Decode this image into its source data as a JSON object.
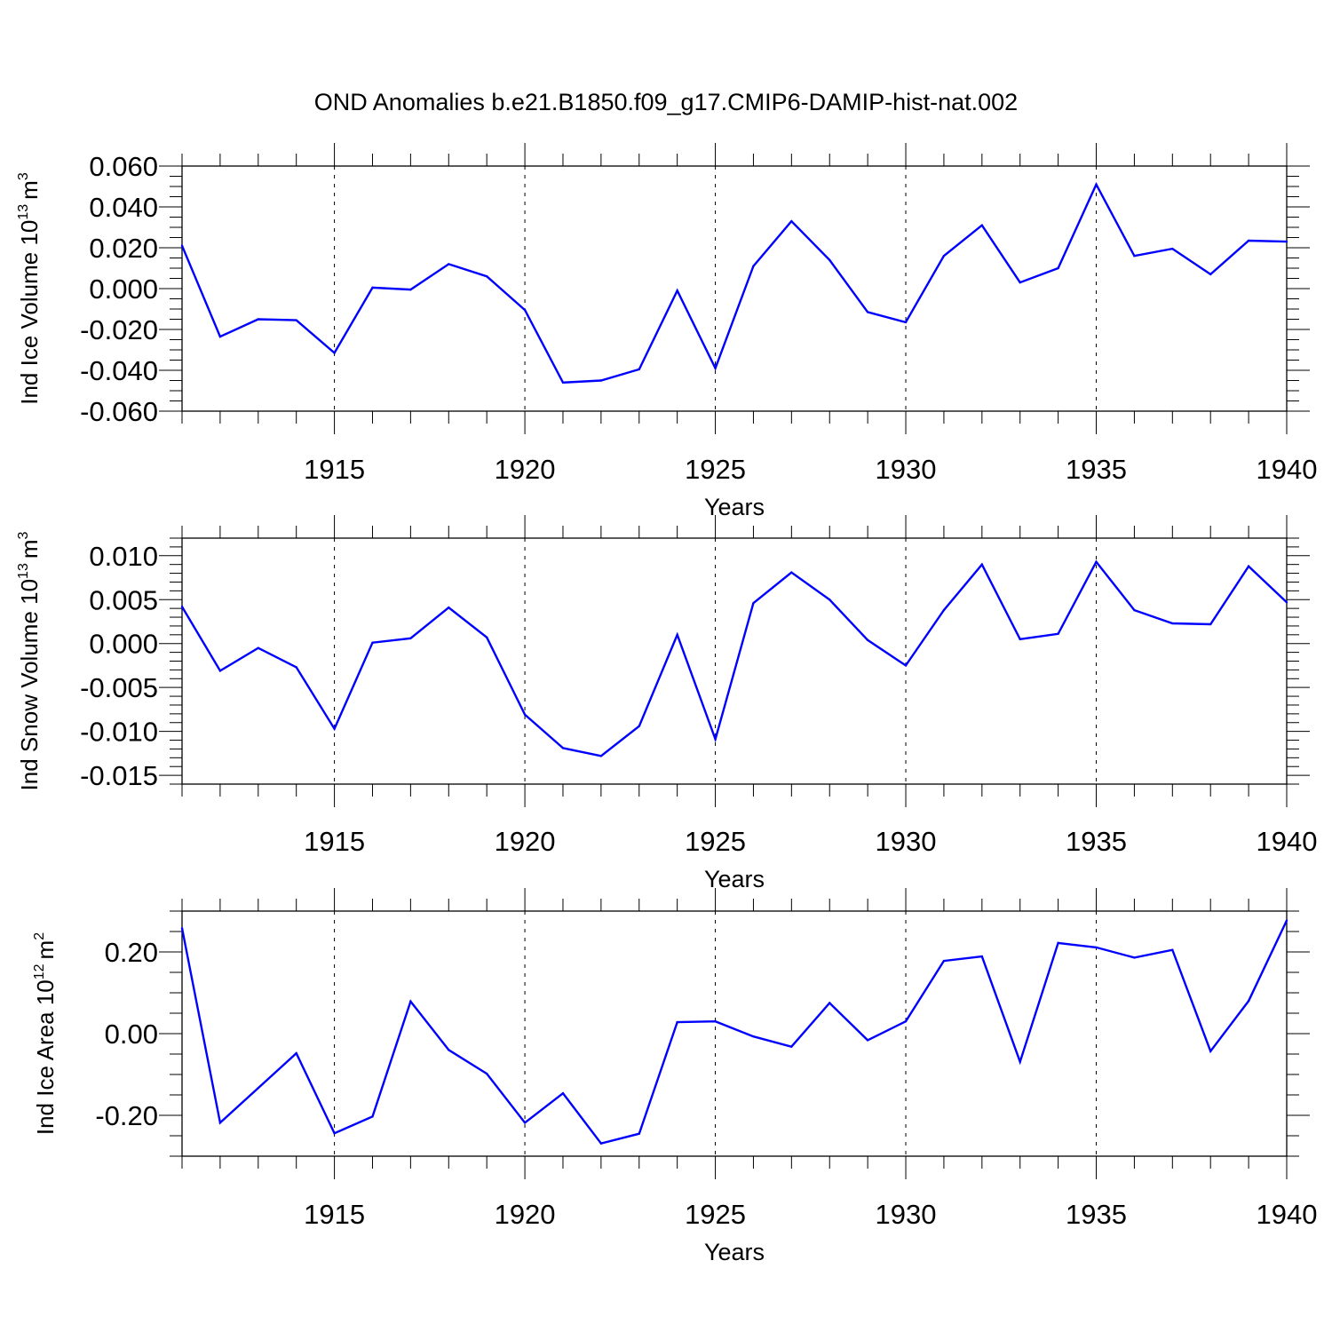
{
  "figure": {
    "title": "OND Anomalies b.e21.B1850.f09_g17.CMIP6-DAMIP-hist-nat.002"
  },
  "chart_data": [
    {
      "type": "line",
      "ylabel": "Ind Ice Volume 10",
      "ylabel_exp": "13",
      "ylabel_unit": "m",
      "ylabel_unit_exp": "3",
      "xlabel": "Years",
      "xlim": [
        1911,
        1940
      ],
      "ylim": [
        -0.06,
        0.06
      ],
      "x_ticks": [
        "1915",
        "1920",
        "1925",
        "1930",
        "1935",
        "1940"
      ],
      "y_ticks": [
        "0.060",
        "0.040",
        "0.020",
        "0.000",
        "-0.020",
        "-0.040",
        "-0.060"
      ],
      "x": [
        1911,
        1912,
        1913,
        1914,
        1915,
        1916,
        1917,
        1918,
        1919,
        1920,
        1921,
        1922,
        1923,
        1924,
        1925,
        1926,
        1927,
        1928,
        1929,
        1930,
        1931,
        1932,
        1933,
        1934,
        1935,
        1936,
        1937,
        1938,
        1939,
        1940
      ],
      "values": [
        0.021,
        -0.0235,
        -0.015,
        -0.0155,
        -0.0315,
        0.0005,
        -0.0005,
        0.012,
        0.006,
        -0.0105,
        -0.046,
        -0.045,
        -0.0395,
        -0.001,
        -0.039,
        0.011,
        0.033,
        0.014,
        -0.0115,
        -0.0165,
        0.016,
        0.031,
        0.003,
        0.01,
        0.051,
        0.016,
        0.0195,
        0.007,
        0.0235,
        0.023
      ],
      "line_color": "#0000ff",
      "grid": "vertical dashed at major x ticks"
    },
    {
      "type": "line",
      "ylabel": "Ind Snow Volume 10",
      "ylabel_exp": "13",
      "ylabel_unit": "m",
      "ylabel_unit_exp": "3",
      "xlabel": "Years",
      "xlim": [
        1911,
        1940
      ],
      "ylim": [
        -0.016,
        0.012
      ],
      "x_ticks": [
        "1915",
        "1920",
        "1925",
        "1930",
        "1935",
        "1940"
      ],
      "y_ticks": [
        "0.010",
        "0.005",
        "0.000",
        "-0.005",
        "-0.010",
        "-0.015"
      ],
      "x": [
        1911,
        1912,
        1913,
        1914,
        1915,
        1916,
        1917,
        1918,
        1919,
        1920,
        1921,
        1922,
        1923,
        1924,
        1925,
        1926,
        1927,
        1928,
        1929,
        1930,
        1931,
        1932,
        1933,
        1934,
        1935,
        1936,
        1937,
        1938,
        1939,
        1940
      ],
      "values": [
        0.0042,
        -0.0031,
        -0.0005,
        -0.0027,
        -0.0097,
        0.0001,
        0.0006,
        0.0041,
        0.0007,
        -0.0081,
        -0.0119,
        -0.0128,
        -0.0094,
        0.001,
        -0.0109,
        0.0046,
        0.0081,
        0.005,
        0.0004,
        -0.0025,
        0.0038,
        0.009,
        0.0005,
        0.0011,
        0.0093,
        0.0038,
        0.0023,
        0.0022,
        0.0088,
        0.0047
      ],
      "line_color": "#0000ff",
      "grid": "vertical dashed at major x ticks"
    },
    {
      "type": "line",
      "ylabel": "Ind Ice Area 10",
      "ylabel_exp": "12",
      "ylabel_unit": "m",
      "ylabel_unit_exp": "2",
      "xlabel": "Years",
      "xlim": [
        1911,
        1940
      ],
      "ylim": [
        -0.3,
        0.3
      ],
      "x_ticks": [
        "1915",
        "1920",
        "1925",
        "1930",
        "1935",
        "1940"
      ],
      "y_ticks": [
        "0.20",
        "0.00",
        "-0.20"
      ],
      "x": [
        1911,
        1912,
        1913,
        1914,
        1915,
        1916,
        1917,
        1918,
        1919,
        1920,
        1921,
        1922,
        1923,
        1924,
        1925,
        1926,
        1927,
        1928,
        1929,
        1930,
        1931,
        1932,
        1933,
        1934,
        1935,
        1936,
        1937,
        1938,
        1939,
        1940
      ],
      "values": [
        0.258,
        -0.218,
        -0.133,
        -0.048,
        -0.244,
        -0.203,
        0.079,
        -0.04,
        -0.098,
        -0.218,
        -0.146,
        -0.269,
        -0.245,
        0.028,
        0.03,
        -0.007,
        -0.032,
        0.075,
        -0.016,
        0.03,
        0.178,
        0.189,
        -0.069,
        0.222,
        0.211,
        0.186,
        0.205,
        -0.043,
        0.08,
        0.277
      ],
      "line_color": "#0000ff",
      "grid": "vertical dashed at major x ticks"
    }
  ]
}
